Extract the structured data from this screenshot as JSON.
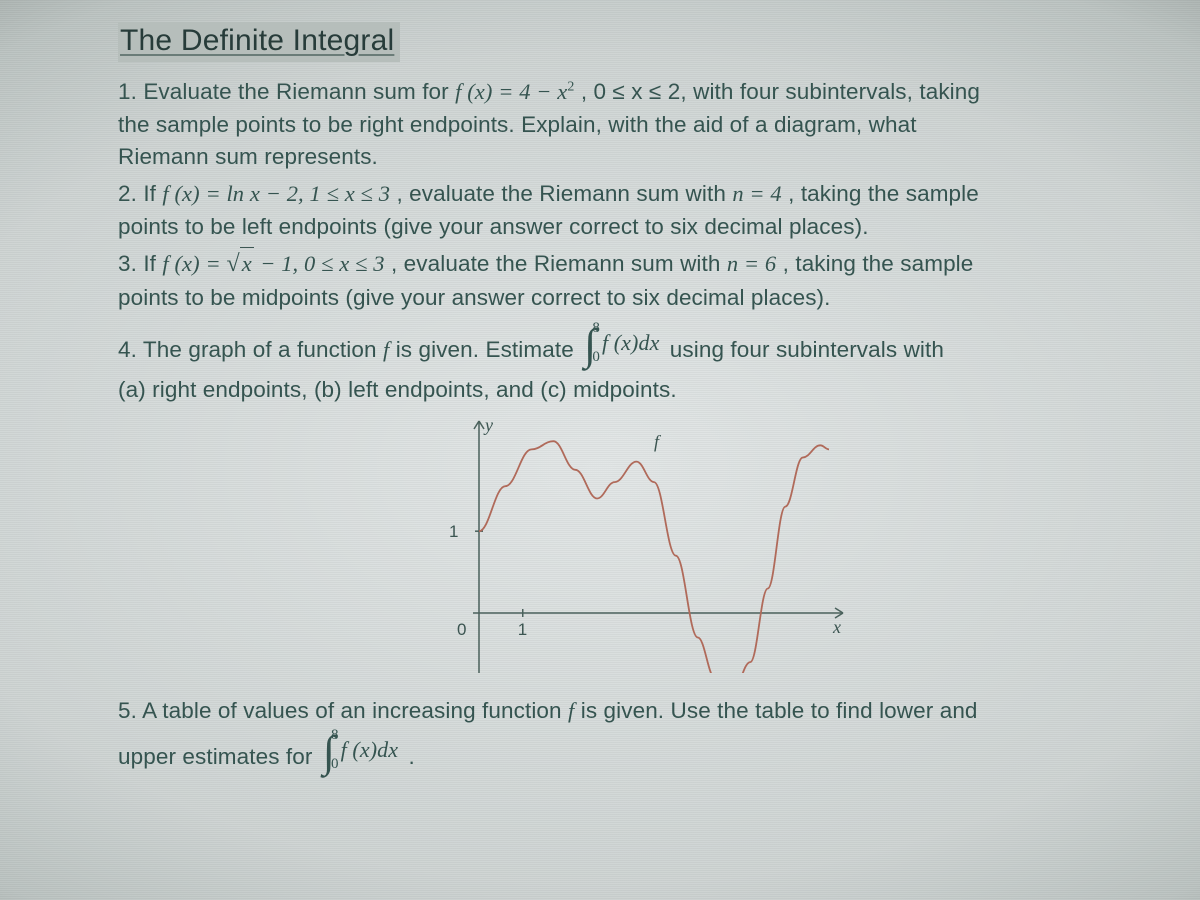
{
  "title": "The Definite Integral",
  "problems": {
    "p1_a": "1. Evaluate the Riemann sum for ",
    "p1_fx": "f (x) = 4 − x",
    "p1_sq": "2",
    "p1_b": ", 0 ≤ x ≤ 2, with four subintervals, taking",
    "p1_c": "the sample points to be right endpoints. Explain, with the aid of a diagram, what",
    "p1_d": "Riemann sum represents.",
    "p2_a": "2. If ",
    "p2_fx": "f (x) = ln x − 2, 1 ≤ x ≤ 3",
    "p2_b": ", evaluate the Riemann sum with ",
    "p2_n": "n = 4",
    "p2_c": ", taking the sample",
    "p2_d": "points to be left endpoints (give your answer correct to six decimal places).",
    "p3_a": "3. If ",
    "p3_fx_head": "f (x) = ",
    "p3_sqrt_arg": "x",
    "p3_fx_tail": " − 1,  0 ≤ x ≤ 3",
    "p3_b": ", evaluate the Riemann sum with ",
    "p3_n": "n = 6",
    "p3_c": ", taking the sample",
    "p3_d": "points to be midpoints (give your answer correct to six decimal places).",
    "p4_a": "4. The graph of a function ",
    "p4_f": "f",
    "p4_b": " is given. Estimate ",
    "p4_int_upper": "8",
    "p4_int_lower": "0",
    "p4_int_body": "f (x)dx",
    "p4_c": " using four subintervals with",
    "p4_d": "(a) right endpoints, (b) left endpoints, and (c) midpoints.",
    "p5_a": "5. A table of values of an increasing function ",
    "p5_f": "f",
    "p5_b": " is given. Use the table to find lower and",
    "p5_c": "upper estimates for ",
    "p5_int_upper": "8",
    "p5_int_lower": "0",
    "p5_int_body": "f (x)dx",
    "p5_d": "."
  },
  "graph": {
    "axis_color": "#4a615c",
    "curve_color": "#b06a5a",
    "y_label": "y",
    "f_label": "f",
    "x_label": "x",
    "tick_one_x": "1",
    "tick_one_y": "1",
    "tick_zero": "0",
    "x_range": [
      0,
      8
    ],
    "y_range": [
      -1,
      2.2
    ],
    "y_tick_at": 1,
    "x_tick_at": 1,
    "points": [
      [
        0.0,
        1.0
      ],
      [
        0.6,
        1.55
      ],
      [
        1.2,
        2.0
      ],
      [
        1.7,
        2.1
      ],
      [
        2.2,
        1.75
      ],
      [
        2.7,
        1.4
      ],
      [
        3.1,
        1.6
      ],
      [
        3.6,
        1.85
      ],
      [
        4.0,
        1.6
      ],
      [
        4.5,
        0.7
      ],
      [
        5.0,
        -0.3
      ],
      [
        5.4,
        -0.8
      ],
      [
        5.8,
        -0.95
      ],
      [
        6.2,
        -0.6
      ],
      [
        6.6,
        0.3
      ],
      [
        7.0,
        1.3
      ],
      [
        7.4,
        1.9
      ],
      [
        7.8,
        2.05
      ],
      [
        8.0,
        2.0
      ]
    ]
  },
  "colors": {
    "text": "#355450",
    "title_bg": "#b6bebb",
    "title_text": "#273c3a"
  }
}
